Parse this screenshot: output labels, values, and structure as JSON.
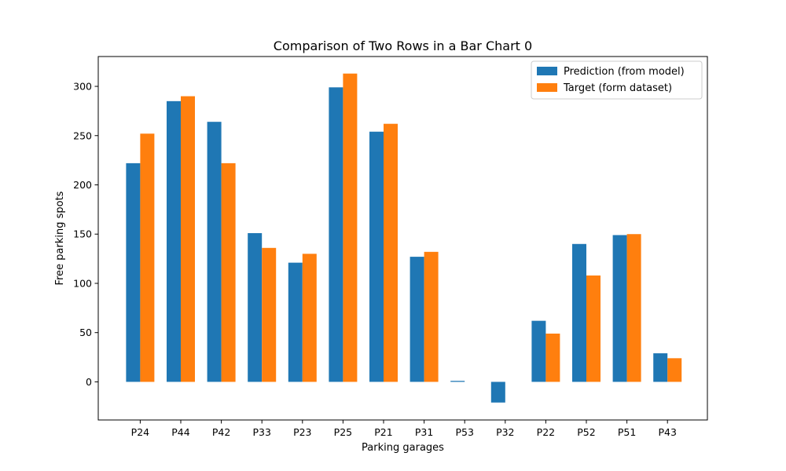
{
  "chart_data": {
    "type": "bar",
    "title": "Comparison of Two Rows in a Bar Chart 0",
    "xlabel": "Parking garages",
    "ylabel": "Free parking spots",
    "categories": [
      "P24",
      "P44",
      "P42",
      "P33",
      "P23",
      "P25",
      "P21",
      "P31",
      "P53",
      "P32",
      "P22",
      "P52",
      "P51",
      "P43"
    ],
    "series": [
      {
        "name": "Prediction (from model)",
        "color": "#1f77b4",
        "values": [
          222,
          285,
          264,
          151,
          121,
          299,
          254,
          127,
          1,
          -21,
          62,
          140,
          149,
          29
        ]
      },
      {
        "name": "Target (form dataset)",
        "color": "#ff7f0e",
        "values": [
          252,
          290,
          222,
          136,
          130,
          313,
          262,
          132,
          0,
          0,
          49,
          108,
          150,
          24
        ]
      }
    ],
    "ylim": [
      -38.7,
      330.3
    ],
    "yticks": [
      0,
      50,
      100,
      150,
      200,
      250,
      300
    ],
    "legend_position": "top-right",
    "grid": false
  }
}
